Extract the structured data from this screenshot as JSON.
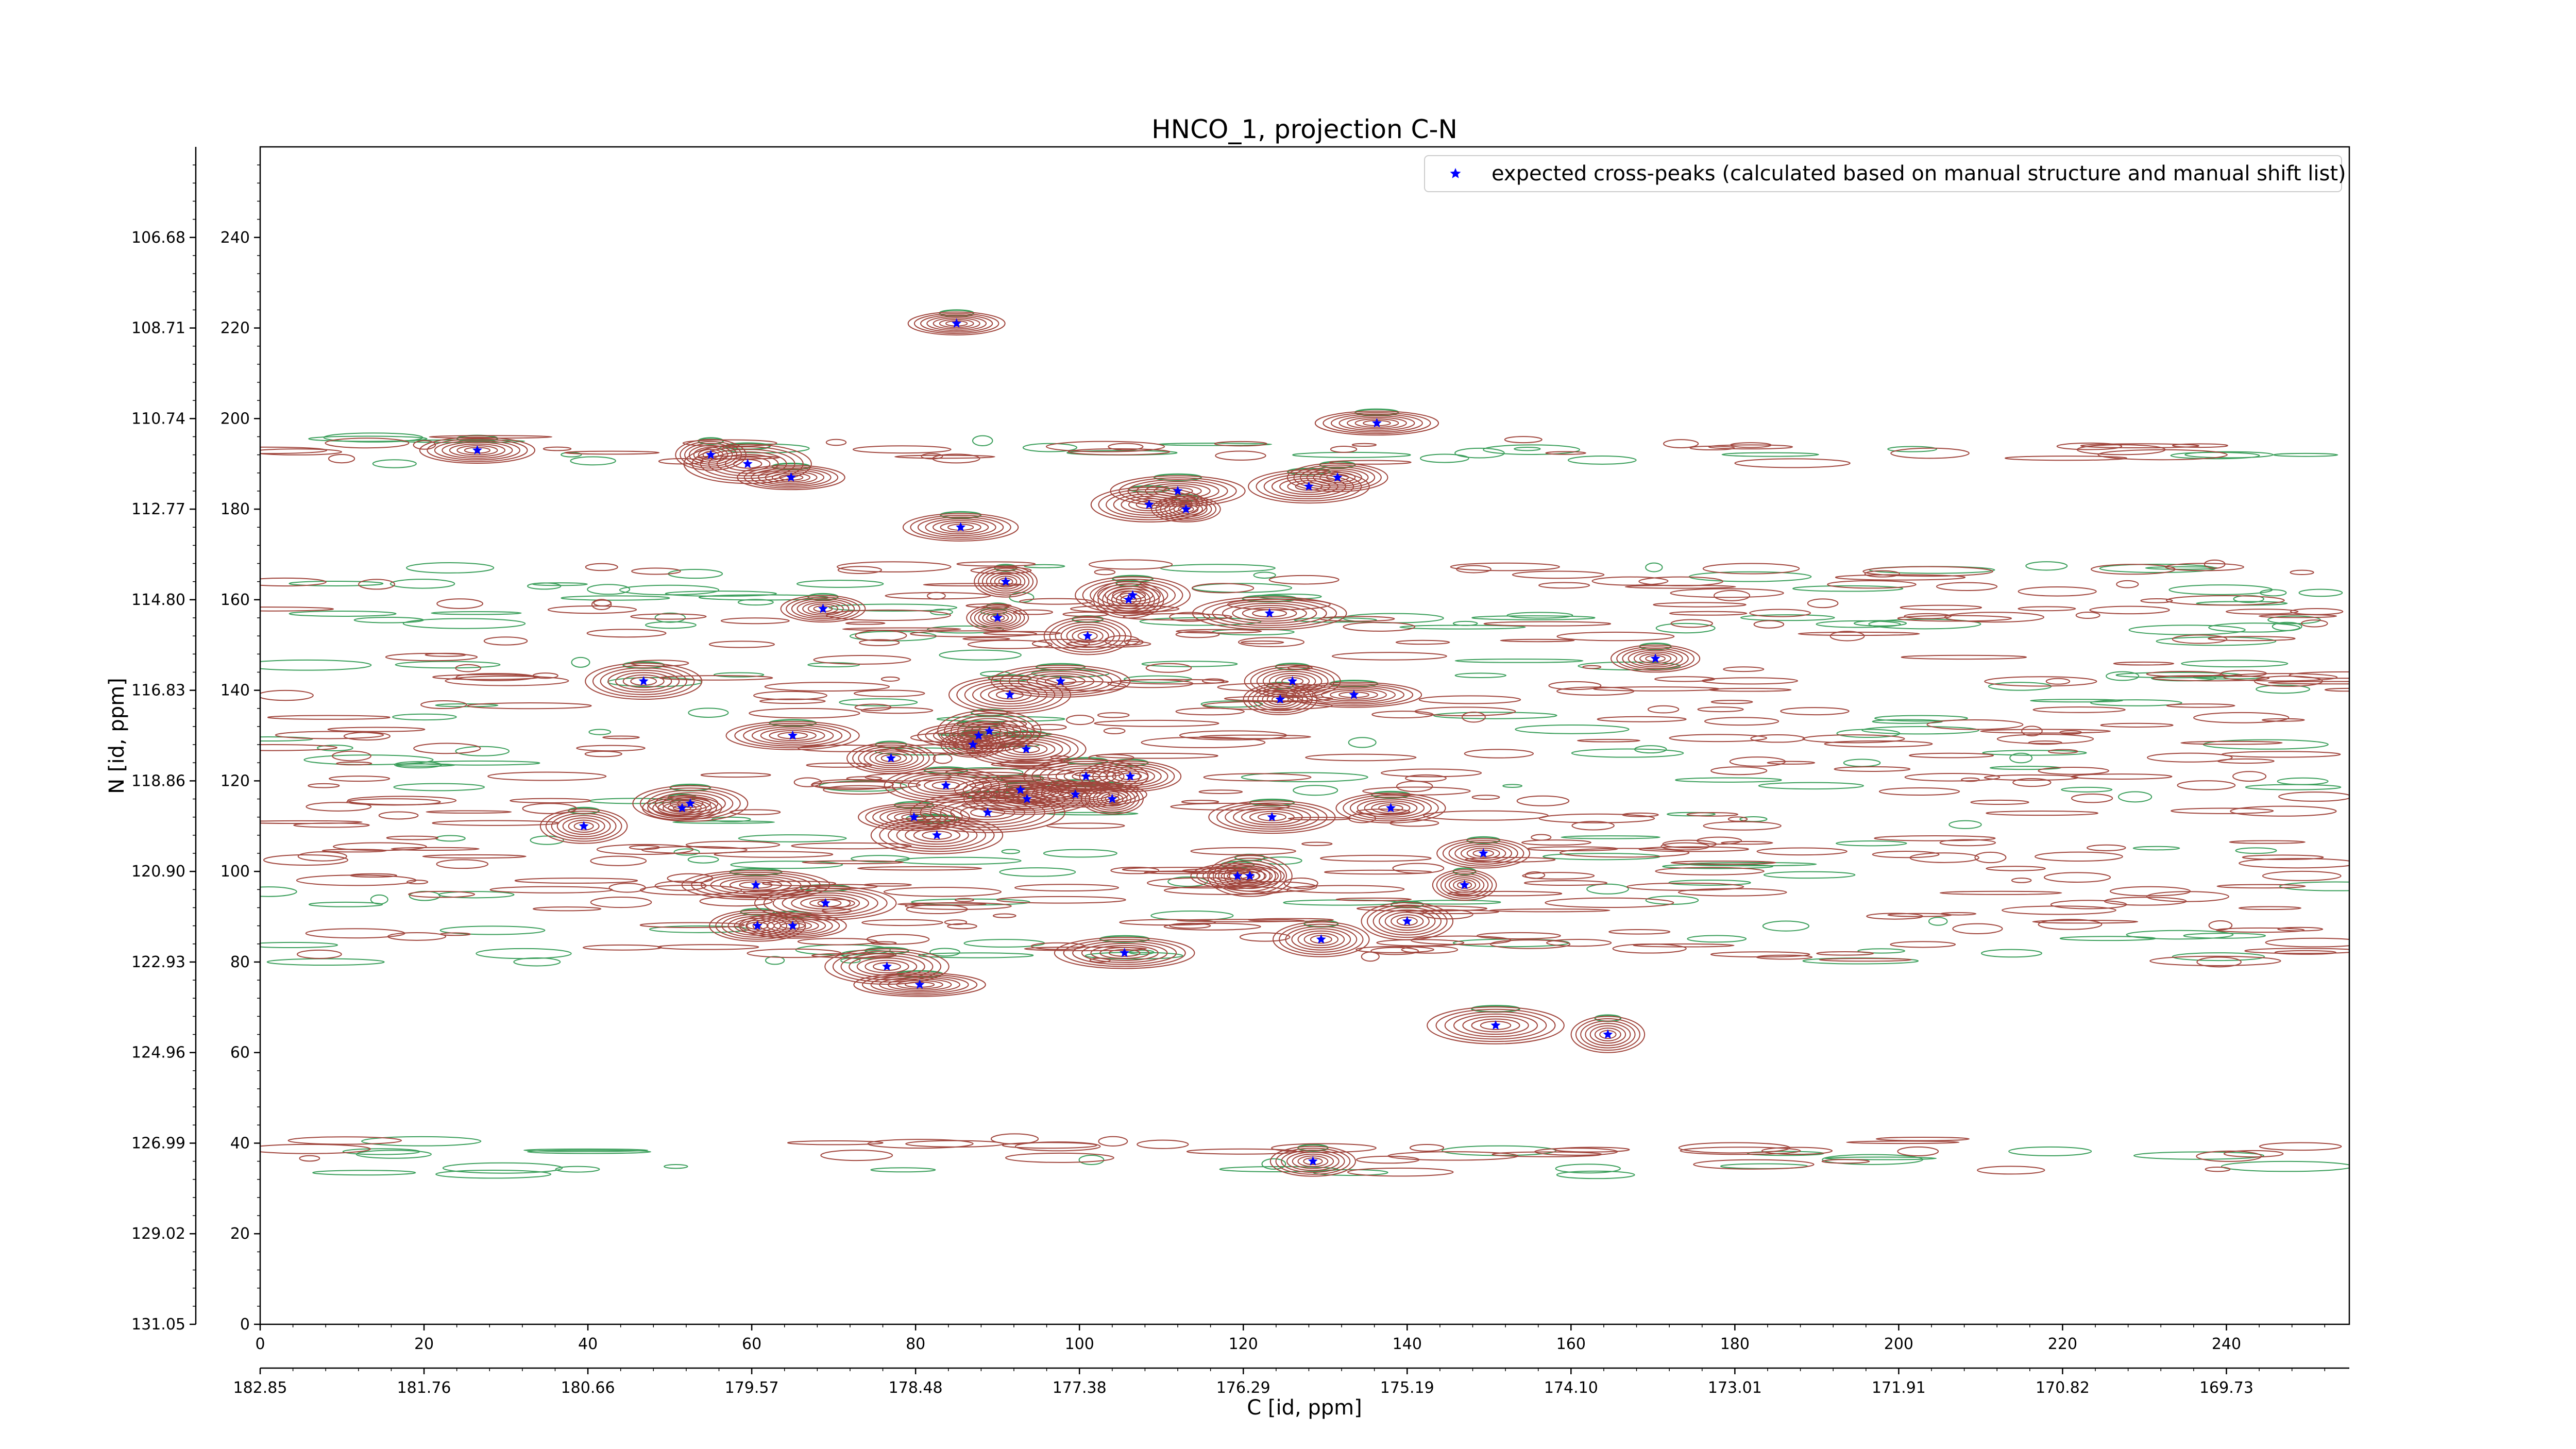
{
  "chart_data": {
    "type": "scatter",
    "title": "HNCO_1, projection C-N",
    "xlabel": "C [id, ppm]",
    "ylabel": "N [id, ppm]",
    "xlim": [
      0,
      255
    ],
    "ylim": [
      0,
      260
    ],
    "x_ticks": [
      0,
      20,
      40,
      60,
      80,
      100,
      120,
      140,
      160,
      180,
      200,
      220,
      240
    ],
    "y_ticks": [
      0,
      20,
      40,
      60,
      80,
      100,
      120,
      140,
      160,
      180,
      200,
      220,
      240
    ],
    "x_ppm_tick_labels": [
      "182.85",
      "181.76",
      "180.66",
      "179.57",
      "178.48",
      "177.38",
      "176.29",
      "175.19",
      "174.10",
      "173.01",
      "171.91",
      "170.82",
      "169.73"
    ],
    "y_ppm_tick_labels": [
      "131.05",
      "129.02",
      "126.99",
      "124.96",
      "122.93",
      "120.90",
      "118.86",
      "116.83",
      "114.80",
      "112.77",
      "110.74",
      "108.71",
      "106.68"
    ],
    "legend": {
      "position": "top-right",
      "entries": [
        {
          "label": "expected cross-peaks (calculated based on manual structure and manual shift list)",
          "color": "#0000ff",
          "marker": "star"
        }
      ]
    },
    "colors": {
      "contour_positive": "#a0453c",
      "contour_negative": "#3a9e5a",
      "peak_marker": "#0000ff"
    },
    "series": [
      {
        "name": "expected cross-peaks (calculated based on manual structure and manual shift list)",
        "points": [
          {
            "x": 26.5,
            "y": 193
          },
          {
            "x": 55,
            "y": 192
          },
          {
            "x": 59.5,
            "y": 190
          },
          {
            "x": 64.8,
            "y": 187
          },
          {
            "x": 85,
            "y": 221
          },
          {
            "x": 85.5,
            "y": 176
          },
          {
            "x": 108.5,
            "y": 181
          },
          {
            "x": 112,
            "y": 184
          },
          {
            "x": 113,
            "y": 180
          },
          {
            "x": 128,
            "y": 185
          },
          {
            "x": 131.5,
            "y": 187
          },
          {
            "x": 136.3,
            "y": 199
          },
          {
            "x": 91,
            "y": 164
          },
          {
            "x": 90,
            "y": 156
          },
          {
            "x": 68.7,
            "y": 158
          },
          {
            "x": 106.5,
            "y": 161
          },
          {
            "x": 106,
            "y": 160
          },
          {
            "x": 123.2,
            "y": 157
          },
          {
            "x": 101,
            "y": 152
          },
          {
            "x": 46.8,
            "y": 142
          },
          {
            "x": 170.3,
            "y": 147
          },
          {
            "x": 97.7,
            "y": 142
          },
          {
            "x": 91.5,
            "y": 139
          },
          {
            "x": 126,
            "y": 142
          },
          {
            "x": 124.5,
            "y": 138
          },
          {
            "x": 133.5,
            "y": 139
          },
          {
            "x": 65,
            "y": 130
          },
          {
            "x": 77,
            "y": 125
          },
          {
            "x": 89,
            "y": 131
          },
          {
            "x": 87.7,
            "y": 130
          },
          {
            "x": 87,
            "y": 128
          },
          {
            "x": 93.5,
            "y": 127
          },
          {
            "x": 100.8,
            "y": 121
          },
          {
            "x": 104,
            "y": 116
          },
          {
            "x": 106.2,
            "y": 121
          },
          {
            "x": 83.7,
            "y": 119
          },
          {
            "x": 92.8,
            "y": 118
          },
          {
            "x": 93.6,
            "y": 116
          },
          {
            "x": 99.5,
            "y": 117
          },
          {
            "x": 52.5,
            "y": 115
          },
          {
            "x": 51.5,
            "y": 114
          },
          {
            "x": 39.5,
            "y": 110
          },
          {
            "x": 79.8,
            "y": 112
          },
          {
            "x": 82.6,
            "y": 108
          },
          {
            "x": 88.8,
            "y": 113
          },
          {
            "x": 123.5,
            "y": 112
          },
          {
            "x": 138,
            "y": 114
          },
          {
            "x": 149.3,
            "y": 104
          },
          {
            "x": 60.5,
            "y": 97
          },
          {
            "x": 119.3,
            "y": 99
          },
          {
            "x": 120.8,
            "y": 99
          },
          {
            "x": 147,
            "y": 97
          },
          {
            "x": 69,
            "y": 93
          },
          {
            "x": 60.7,
            "y": 88
          },
          {
            "x": 65,
            "y": 88
          },
          {
            "x": 140,
            "y": 89
          },
          {
            "x": 129.5,
            "y": 85
          },
          {
            "x": 105.5,
            "y": 82
          },
          {
            "x": 76.5,
            "y": 79
          },
          {
            "x": 80.5,
            "y": 75
          },
          {
            "x": 150.8,
            "y": 66
          },
          {
            "x": 164.5,
            "y": 64
          },
          {
            "x": 128.5,
            "y": 36
          }
        ]
      }
    ]
  }
}
